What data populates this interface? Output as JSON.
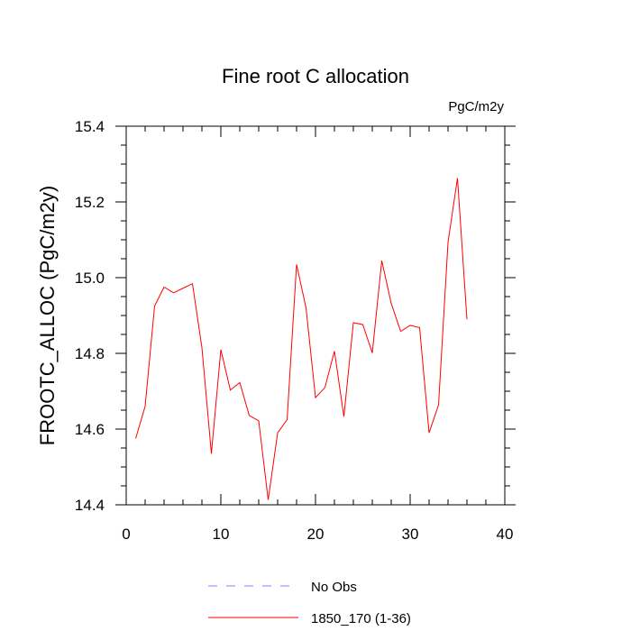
{
  "chart_data": {
    "type": "line",
    "title": "Fine root C allocation",
    "units_label": "PgC/m2y",
    "xlabel": "",
    "ylabel": "FROOTC_ALLOC  (PgC/m2y)",
    "xlim": [
      0,
      40
    ],
    "ylim": [
      14.4,
      15.4
    ],
    "x_ticks": [
      0,
      10,
      20,
      30,
      40
    ],
    "y_ticks": [
      14.4,
      14.6,
      14.8,
      15.0,
      15.2,
      15.4
    ],
    "y_tick_labels": [
      "14.4",
      "14.6",
      "14.8",
      "15.0",
      "15.2",
      "15.4"
    ],
    "grid": false,
    "legend_position": "bottom",
    "series": [
      {
        "name": "1850_170 (1-36)",
        "color": "#ff0000",
        "style": "solid",
        "x": [
          1,
          2,
          3,
          4,
          5,
          6,
          7,
          8,
          9,
          10,
          11,
          12,
          13,
          14,
          15,
          16,
          17,
          18,
          19,
          20,
          21,
          22,
          23,
          24,
          25,
          26,
          27,
          28,
          29,
          30,
          31,
          32,
          33,
          34,
          35,
          36
        ],
        "values": [
          14.575,
          14.66,
          14.925,
          14.975,
          14.96,
          14.972,
          14.984,
          14.815,
          14.535,
          14.81,
          14.703,
          14.723,
          14.636,
          14.622,
          14.413,
          14.59,
          14.625,
          15.035,
          14.92,
          14.683,
          14.71,
          14.806,
          14.633,
          14.881,
          14.876,
          14.801,
          15.045,
          14.932,
          14.858,
          14.874,
          14.868,
          14.59,
          14.664,
          15.093,
          15.263,
          14.89
        ]
      }
    ],
    "legend": [
      {
        "name": "No Obs",
        "color": "#8080ff",
        "style": "dashed"
      },
      {
        "name": "1850_170 (1-36)",
        "color": "#ff0000",
        "style": "solid"
      }
    ]
  }
}
